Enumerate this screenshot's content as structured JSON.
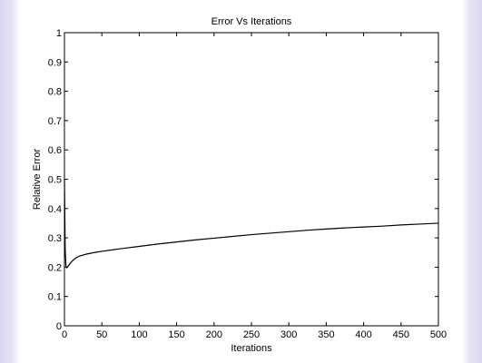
{
  "figure": {
    "background": "#ffffff",
    "side_band_color": "#dcd7f0"
  },
  "chart_data": {
    "type": "line",
    "title": "Error Vs Iterations",
    "xlabel": "Iterations",
    "ylabel": "Relative Error",
    "xlim": [
      0,
      500
    ],
    "ylim": [
      0,
      1
    ],
    "xticks": [
      0,
      50,
      100,
      150,
      200,
      250,
      300,
      350,
      400,
      450,
      500
    ],
    "yticks": [
      0,
      0.1,
      0.2,
      0.3,
      0.4,
      0.5,
      0.6,
      0.7,
      0.8,
      0.9,
      1
    ],
    "grid": false,
    "line_color": "#000000",
    "series": [
      {
        "x": [
          0,
          1,
          2,
          3,
          4,
          6,
          8,
          10,
          15,
          20,
          30,
          40,
          50,
          75,
          100,
          125,
          150,
          175,
          200,
          225,
          250,
          275,
          300,
          325,
          350,
          375,
          400,
          425,
          450,
          475,
          500
        ],
        "values": [
          0.5,
          0.26,
          0.205,
          0.198,
          0.2,
          0.207,
          0.214,
          0.22,
          0.231,
          0.238,
          0.245,
          0.25,
          0.254,
          0.263,
          0.271,
          0.279,
          0.286,
          0.293,
          0.299,
          0.305,
          0.311,
          0.316,
          0.321,
          0.326,
          0.33,
          0.334,
          0.337,
          0.34,
          0.344,
          0.347,
          0.35
        ]
      }
    ]
  }
}
